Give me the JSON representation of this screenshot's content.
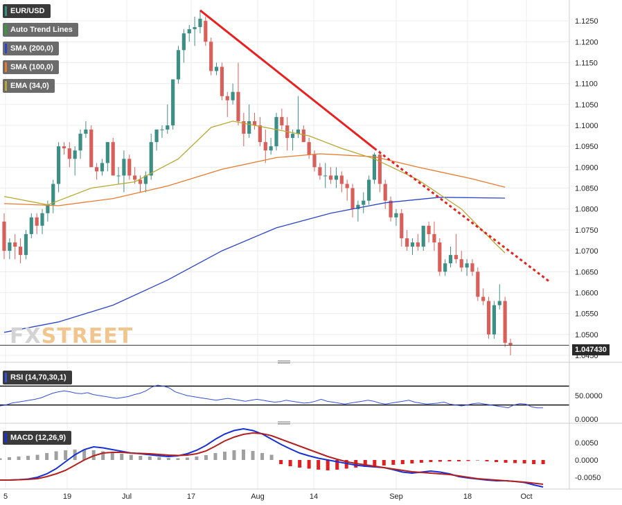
{
  "chart_data": {
    "type": "candlestick",
    "symbol": "EUR/USD",
    "current_price": "1.047430",
    "x_ticks": [
      "5",
      "19",
      "Jul",
      "17",
      "Aug",
      "14",
      "Sep",
      "18",
      "Oct"
    ],
    "price_axis": {
      "range": [
        1.0445,
        1.127
      ],
      "ticks": [
        "1.1250",
        "1.1200",
        "1.1150",
        "1.1100",
        "1.1050",
        "1.1000",
        "1.0950",
        "1.0900",
        "1.0850",
        "1.0800",
        "1.0750",
        "1.0700",
        "1.0650",
        "1.0600",
        "1.0550",
        "1.0500",
        "1.0450"
      ]
    },
    "candles": [
      [
        1.077,
        1.079,
        1.068,
        1.07
      ],
      [
        1.07,
        1.073,
        1.068,
        1.072
      ],
      [
        1.072,
        1.074,
        1.068,
        1.071
      ],
      [
        1.071,
        1.073,
        1.067,
        1.069
      ],
      [
        1.069,
        1.075,
        1.068,
        1.074
      ],
      [
        1.074,
        1.079,
        1.073,
        1.078
      ],
      [
        1.078,
        1.079,
        1.074,
        1.076
      ],
      [
        1.076,
        1.08,
        1.074,
        1.079
      ],
      [
        1.079,
        1.082,
        1.077,
        1.081
      ],
      [
        1.081,
        1.087,
        1.079,
        1.086
      ],
      [
        1.086,
        1.096,
        1.084,
        1.095
      ],
      [
        1.095,
        1.096,
        1.093,
        1.0945
      ],
      [
        1.0945,
        1.096,
        1.09,
        1.092
      ],
      [
        1.092,
        1.095,
        1.088,
        1.094
      ],
      [
        1.094,
        1.099,
        1.092,
        1.098
      ],
      [
        1.098,
        1.101,
        1.097,
        1.099
      ],
      [
        1.099,
        1.1,
        1.09,
        1.09
      ],
      [
        1.09,
        1.091,
        1.087,
        1.089
      ],
      [
        1.089,
        1.092,
        1.088,
        1.091
      ],
      [
        1.091,
        1.096,
        1.089,
        1.096
      ],
      [
        1.096,
        1.097,
        1.088,
        1.088
      ],
      [
        1.088,
        1.09,
        1.086,
        1.088
      ],
      [
        1.088,
        1.094,
        1.084,
        1.092
      ],
      [
        1.092,
        1.093,
        1.087,
        1.088
      ],
      [
        1.088,
        1.09,
        1.086,
        1.087
      ],
      [
        1.087,
        1.088,
        1.084,
        1.086
      ],
      [
        1.086,
        1.089,
        1.084,
        1.088
      ],
      [
        1.088,
        1.098,
        1.087,
        1.096
      ],
      [
        1.096,
        1.099,
        1.094,
        1.099
      ],
      [
        1.099,
        1.1,
        1.097,
        1.099
      ],
      [
        1.099,
        1.105,
        1.098,
        1.1
      ],
      [
        1.1,
        1.111,
        1.099,
        1.111
      ],
      [
        1.111,
        1.119,
        1.11,
        1.118
      ],
      [
        1.118,
        1.123,
        1.115,
        1.122
      ],
      [
        1.122,
        1.124,
        1.12,
        1.123
      ],
      [
        1.123,
        1.126,
        1.119,
        1.1235
      ],
      [
        1.1235,
        1.1275,
        1.122,
        1.1255
      ],
      [
        1.125,
        1.126,
        1.119,
        1.12
      ],
      [
        1.12,
        1.121,
        1.112,
        1.113
      ],
      [
        1.113,
        1.115,
        1.112,
        1.114
      ],
      [
        1.114,
        1.115,
        1.106,
        1.107
      ],
      [
        1.107,
        1.108,
        1.102,
        1.106
      ],
      [
        1.106,
        1.11,
        1.105,
        1.108
      ],
      [
        1.108,
        1.115,
        1.1,
        1.101
      ],
      [
        1.101,
        1.103,
        1.095,
        1.098
      ],
      [
        1.098,
        1.105,
        1.097,
        1.101
      ],
      [
        1.101,
        1.103,
        1.099,
        1.1
      ],
      [
        1.1,
        1.102,
        1.095,
        1.096
      ],
      [
        1.096,
        1.099,
        1.091,
        1.094
      ],
      [
        1.094,
        1.097,
        1.093,
        1.095
      ],
      [
        1.095,
        1.103,
        1.094,
        1.102
      ],
      [
        1.102,
        1.104,
        1.099,
        1.1
      ],
      [
        1.1,
        1.102,
        1.094,
        1.097
      ],
      [
        1.097,
        1.099,
        1.094,
        1.098
      ],
      [
        1.098,
        1.107,
        1.097,
        1.099
      ],
      [
        1.099,
        1.1,
        1.096,
        1.096
      ],
      [
        1.096,
        1.097,
        1.092,
        1.093
      ],
      [
        1.093,
        1.094,
        1.089,
        1.09
      ],
      [
        1.09,
        1.091,
        1.087,
        1.088
      ],
      [
        1.088,
        1.091,
        1.085,
        1.088
      ],
      [
        1.088,
        1.09,
        1.086,
        1.087
      ],
      [
        1.087,
        1.09,
        1.085,
        1.088
      ],
      [
        1.088,
        1.089,
        1.084,
        1.086
      ],
      [
        1.086,
        1.087,
        1.082,
        1.085
      ],
      [
        1.085,
        1.086,
        1.078,
        1.08
      ],
      [
        1.08,
        1.082,
        1.077,
        1.081
      ],
      [
        1.081,
        1.084,
        1.079,
        1.082
      ],
      [
        1.082,
        1.088,
        1.081,
        1.087
      ],
      [
        1.087,
        1.0935,
        1.086,
        1.093
      ],
      [
        1.093,
        1.094,
        1.084,
        1.086
      ],
      [
        1.086,
        1.087,
        1.08,
        1.082
      ],
      [
        1.082,
        1.083,
        1.077,
        1.078
      ],
      [
        1.078,
        1.08,
        1.076,
        1.079
      ],
      [
        1.079,
        1.08,
        1.071,
        1.073
      ],
      [
        1.073,
        1.075,
        1.07,
        1.071
      ],
      [
        1.071,
        1.073,
        1.069,
        1.072
      ],
      [
        1.072,
        1.074,
        1.07,
        1.071
      ],
      [
        1.071,
        1.076,
        1.07,
        1.076
      ],
      [
        1.076,
        1.077,
        1.072,
        1.074
      ],
      [
        1.074,
        1.077,
        1.07,
        1.072
      ],
      [
        1.072,
        1.073,
        1.064,
        1.065
      ],
      [
        1.065,
        1.068,
        1.064,
        1.067
      ],
      [
        1.067,
        1.071,
        1.066,
        1.069
      ],
      [
        1.069,
        1.074,
        1.067,
        1.068
      ],
      [
        1.068,
        1.07,
        1.065,
        1.066
      ],
      [
        1.066,
        1.068,
        1.064,
        1.067
      ],
      [
        1.067,
        1.068,
        1.064,
        1.065
      ],
      [
        1.065,
        1.066,
        1.058,
        1.059
      ],
      [
        1.059,
        1.061,
        1.057,
        1.058
      ],
      [
        1.058,
        1.059,
        1.049,
        1.05
      ],
      [
        1.05,
        1.058,
        1.049,
        1.057
      ],
      [
        1.057,
        1.062,
        1.056,
        1.058
      ],
      [
        1.058,
        1.059,
        1.047,
        1.048
      ],
      [
        1.048,
        1.049,
        1.045,
        1.0474
      ]
    ],
    "trend_lines": [
      {
        "style": "solid",
        "start": [
          36,
          1.1275
        ],
        "end": [
          68,
          1.0945
        ]
      },
      {
        "style": "dotted",
        "start": [
          68,
          1.0945
        ],
        "end": [
          100,
          1.0628
        ]
      }
    ],
    "sma200": [
      [
        0,
        1.0505
      ],
      [
        10,
        1.053
      ],
      [
        20,
        1.057
      ],
      [
        30,
        1.063
      ],
      [
        40,
        1.07
      ],
      [
        50,
        1.0755
      ],
      [
        60,
        1.079
      ],
      [
        70,
        1.0815
      ],
      [
        80,
        1.0828
      ],
      [
        92,
        1.0826
      ]
    ],
    "sma100": [
      [
        0,
        1.0813
      ],
      [
        10,
        1.0808
      ],
      [
        20,
        1.0825
      ],
      [
        30,
        1.0855
      ],
      [
        40,
        1.0895
      ],
      [
        50,
        1.0923
      ],
      [
        58,
        1.0932
      ],
      [
        68,
        1.0925
      ],
      [
        76,
        1.09
      ],
      [
        86,
        1.0872
      ],
      [
        92,
        1.0852
      ]
    ],
    "ema34": [
      [
        0,
        1.083
      ],
      [
        8,
        1.081
      ],
      [
        16,
        1.085
      ],
      [
        24,
        1.0865
      ],
      [
        32,
        1.092
      ],
      [
        38,
        1.0995
      ],
      [
        42,
        1.101
      ],
      [
        50,
        1.099
      ],
      [
        56,
        1.0975
      ],
      [
        62,
        1.0945
      ],
      [
        68,
        1.092
      ],
      [
        76,
        1.087
      ],
      [
        84,
        1.08
      ],
      [
        90,
        1.072
      ],
      [
        92,
        1.0695
      ]
    ],
    "rsi": {
      "range": [
        0,
        100
      ],
      "upper": 70,
      "lower": 30,
      "values": [
        28,
        30,
        34,
        36,
        38,
        40,
        42,
        45,
        50,
        55,
        58,
        60,
        58,
        55,
        54,
        56,
        52,
        50,
        48,
        46,
        44,
        46,
        48,
        52,
        55,
        60,
        68,
        72,
        70,
        66,
        58,
        54,
        50,
        48,
        46,
        44,
        42,
        40,
        42,
        44,
        42,
        40,
        38,
        40,
        42,
        40,
        38,
        36,
        37,
        40,
        38,
        36,
        34,
        35,
        38,
        42,
        38,
        36,
        34,
        32,
        34,
        36,
        38,
        40,
        38,
        34,
        32,
        34,
        36,
        38,
        40,
        36,
        34,
        32,
        33,
        34,
        36,
        32,
        30,
        28,
        30,
        33,
        34,
        32,
        30,
        28,
        26,
        24,
        30,
        33,
        32,
        26,
        24,
        24
      ]
    },
    "rsi_ticks": [
      "50.0000",
      "0.0000"
    ],
    "macd": {
      "range": [
        -0.0082,
        0.0098
      ],
      "ticks": [
        "0.0050",
        "0.0000",
        "-0.0050"
      ],
      "macd_line": [
        -0.0058,
        -0.0058,
        -0.0057,
        -0.0055,
        -0.005,
        -0.004,
        -0.0025,
        -0.0005,
        0.0015,
        0.003,
        0.0038,
        0.0035,
        0.003,
        0.0025,
        0.002,
        0.0018,
        0.0015,
        0.0012,
        0.001,
        0.0012,
        0.0018,
        0.0028,
        0.0042,
        0.006,
        0.0075,
        0.0085,
        0.009,
        0.0085,
        0.0075,
        0.006,
        0.0045,
        0.0032,
        0.002,
        0.0012,
        0.0005,
        0.0,
        -0.0005,
        -0.001,
        -0.0015,
        -0.0018,
        -0.002,
        -0.0022,
        -0.0028,
        -0.0035,
        -0.0038,
        -0.0035,
        -0.0032,
        -0.0035,
        -0.004,
        -0.0048,
        -0.0052,
        -0.0055,
        -0.0058,
        -0.006,
        -0.006,
        -0.0062,
        -0.0065,
        -0.0072,
        -0.0078
      ],
      "signal_line": [
        -0.0058,
        -0.0058,
        -0.0057,
        -0.0056,
        -0.0054,
        -0.0048,
        -0.004,
        -0.003,
        -0.0015,
        0.0,
        0.0012,
        0.002,
        0.0022,
        0.0022,
        0.002,
        0.0019,
        0.0018,
        0.0016,
        0.0014,
        0.0013,
        0.0014,
        0.0018,
        0.0026,
        0.004,
        0.0055,
        0.0066,
        0.0074,
        0.0078,
        0.0076,
        0.007,
        0.006,
        0.005,
        0.004,
        0.003,
        0.002,
        0.001,
        0.0002,
        -0.0005,
        -0.001,
        -0.0014,
        -0.0018,
        -0.0022,
        -0.0026,
        -0.003,
        -0.0034,
        -0.0036,
        -0.0038,
        -0.004,
        -0.0042,
        -0.0046,
        -0.005,
        -0.0054,
        -0.0056,
        -0.0058,
        -0.006,
        -0.0062,
        -0.0064,
        -0.0067,
        -0.007
      ],
      "histogram": [
        0.0005,
        0.0008,
        0.001,
        0.0012,
        0.0015,
        0.002,
        0.0025,
        0.0028,
        0.003,
        0.003,
        0.0028,
        0.0025,
        0.0022,
        0.0018,
        0.0015,
        0.0012,
        0.001,
        0.0008,
        0.0006,
        0.0005,
        0.0007,
        0.001,
        0.0014,
        0.002,
        0.0024,
        0.0028,
        0.003,
        0.0026,
        0.002,
        0.0015,
        -0.0012,
        -0.0018,
        -0.0022,
        -0.0025,
        -0.0028,
        -0.003,
        -0.0028,
        -0.0025,
        -0.0022,
        -0.002,
        -0.0018,
        -0.0016,
        -0.0014,
        -0.0012,
        -0.001,
        -0.0008,
        -0.0006,
        -0.0005,
        -0.0004,
        -0.0004,
        -0.0003,
        0.0,
        -0.0004,
        -0.0006,
        -0.0008,
        -0.0009,
        -0.001,
        -0.0012,
        -0.0012
      ]
    }
  },
  "legend": {
    "symbol": "EUR/USD",
    "trend": "Auto Trend Lines",
    "sma200": "SMA (200,0)",
    "sma100": "SMA (100,0)",
    "ema34": "EMA (34,0)",
    "rsi": "RSI (14,70,30,1)",
    "macd": "MACD (12,26,9)"
  },
  "colors": {
    "bull": "#3d8f86",
    "bear": "#d9605a",
    "trend": "#e82020",
    "sma200": "#2b44c9",
    "sma100": "#e87a2e",
    "ema34": "#b8a831",
    "rsi_line": "#3350d6",
    "macd_line": "#1730d6",
    "signal_line": "#b22020",
    "hist_pos": "#a0a0a0",
    "hist_neg": "#e02020"
  },
  "logo": {
    "fx": "FX",
    "street": "STREET"
  }
}
